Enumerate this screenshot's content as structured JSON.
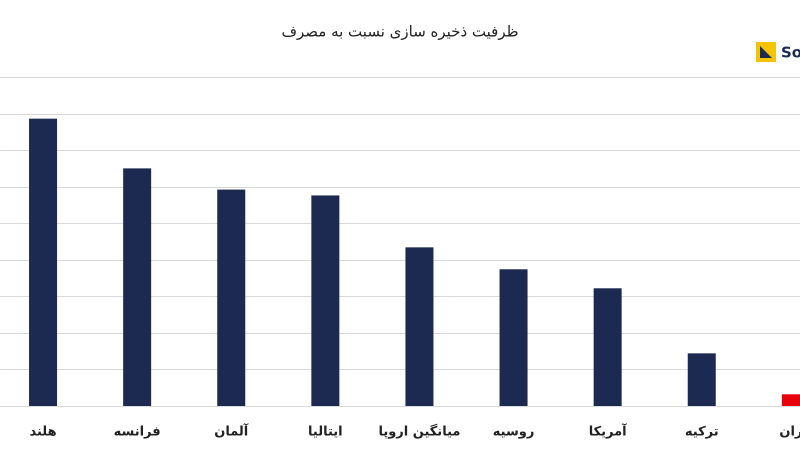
{
  "chart_data": {
    "type": "bar",
    "title": "ظرفیت ذخیره سازی نسبت به مصرف",
    "annotation": "So",
    "categories": [
      "هلند",
      "فرانسه",
      "آلمان",
      "ایتالیا",
      "میانگین اروپا",
      "روسیه",
      "آمریکا",
      "ترکیه",
      "ایران"
    ],
    "values": [
      39.3,
      32.5,
      29.6,
      28.8,
      21.7,
      18.7,
      16.1,
      7.2,
      1.6
    ],
    "colors": [
      "#1c2951",
      "#1c2951",
      "#1c2951",
      "#1c2951",
      "#1c2951",
      "#1c2951",
      "#1c2951",
      "#1c2951",
      "#e8000b"
    ],
    "ylim": [
      0,
      45
    ],
    "yticks": [
      0,
      5,
      10,
      15,
      20,
      25,
      30,
      35,
      40,
      45
    ],
    "grid": true
  }
}
